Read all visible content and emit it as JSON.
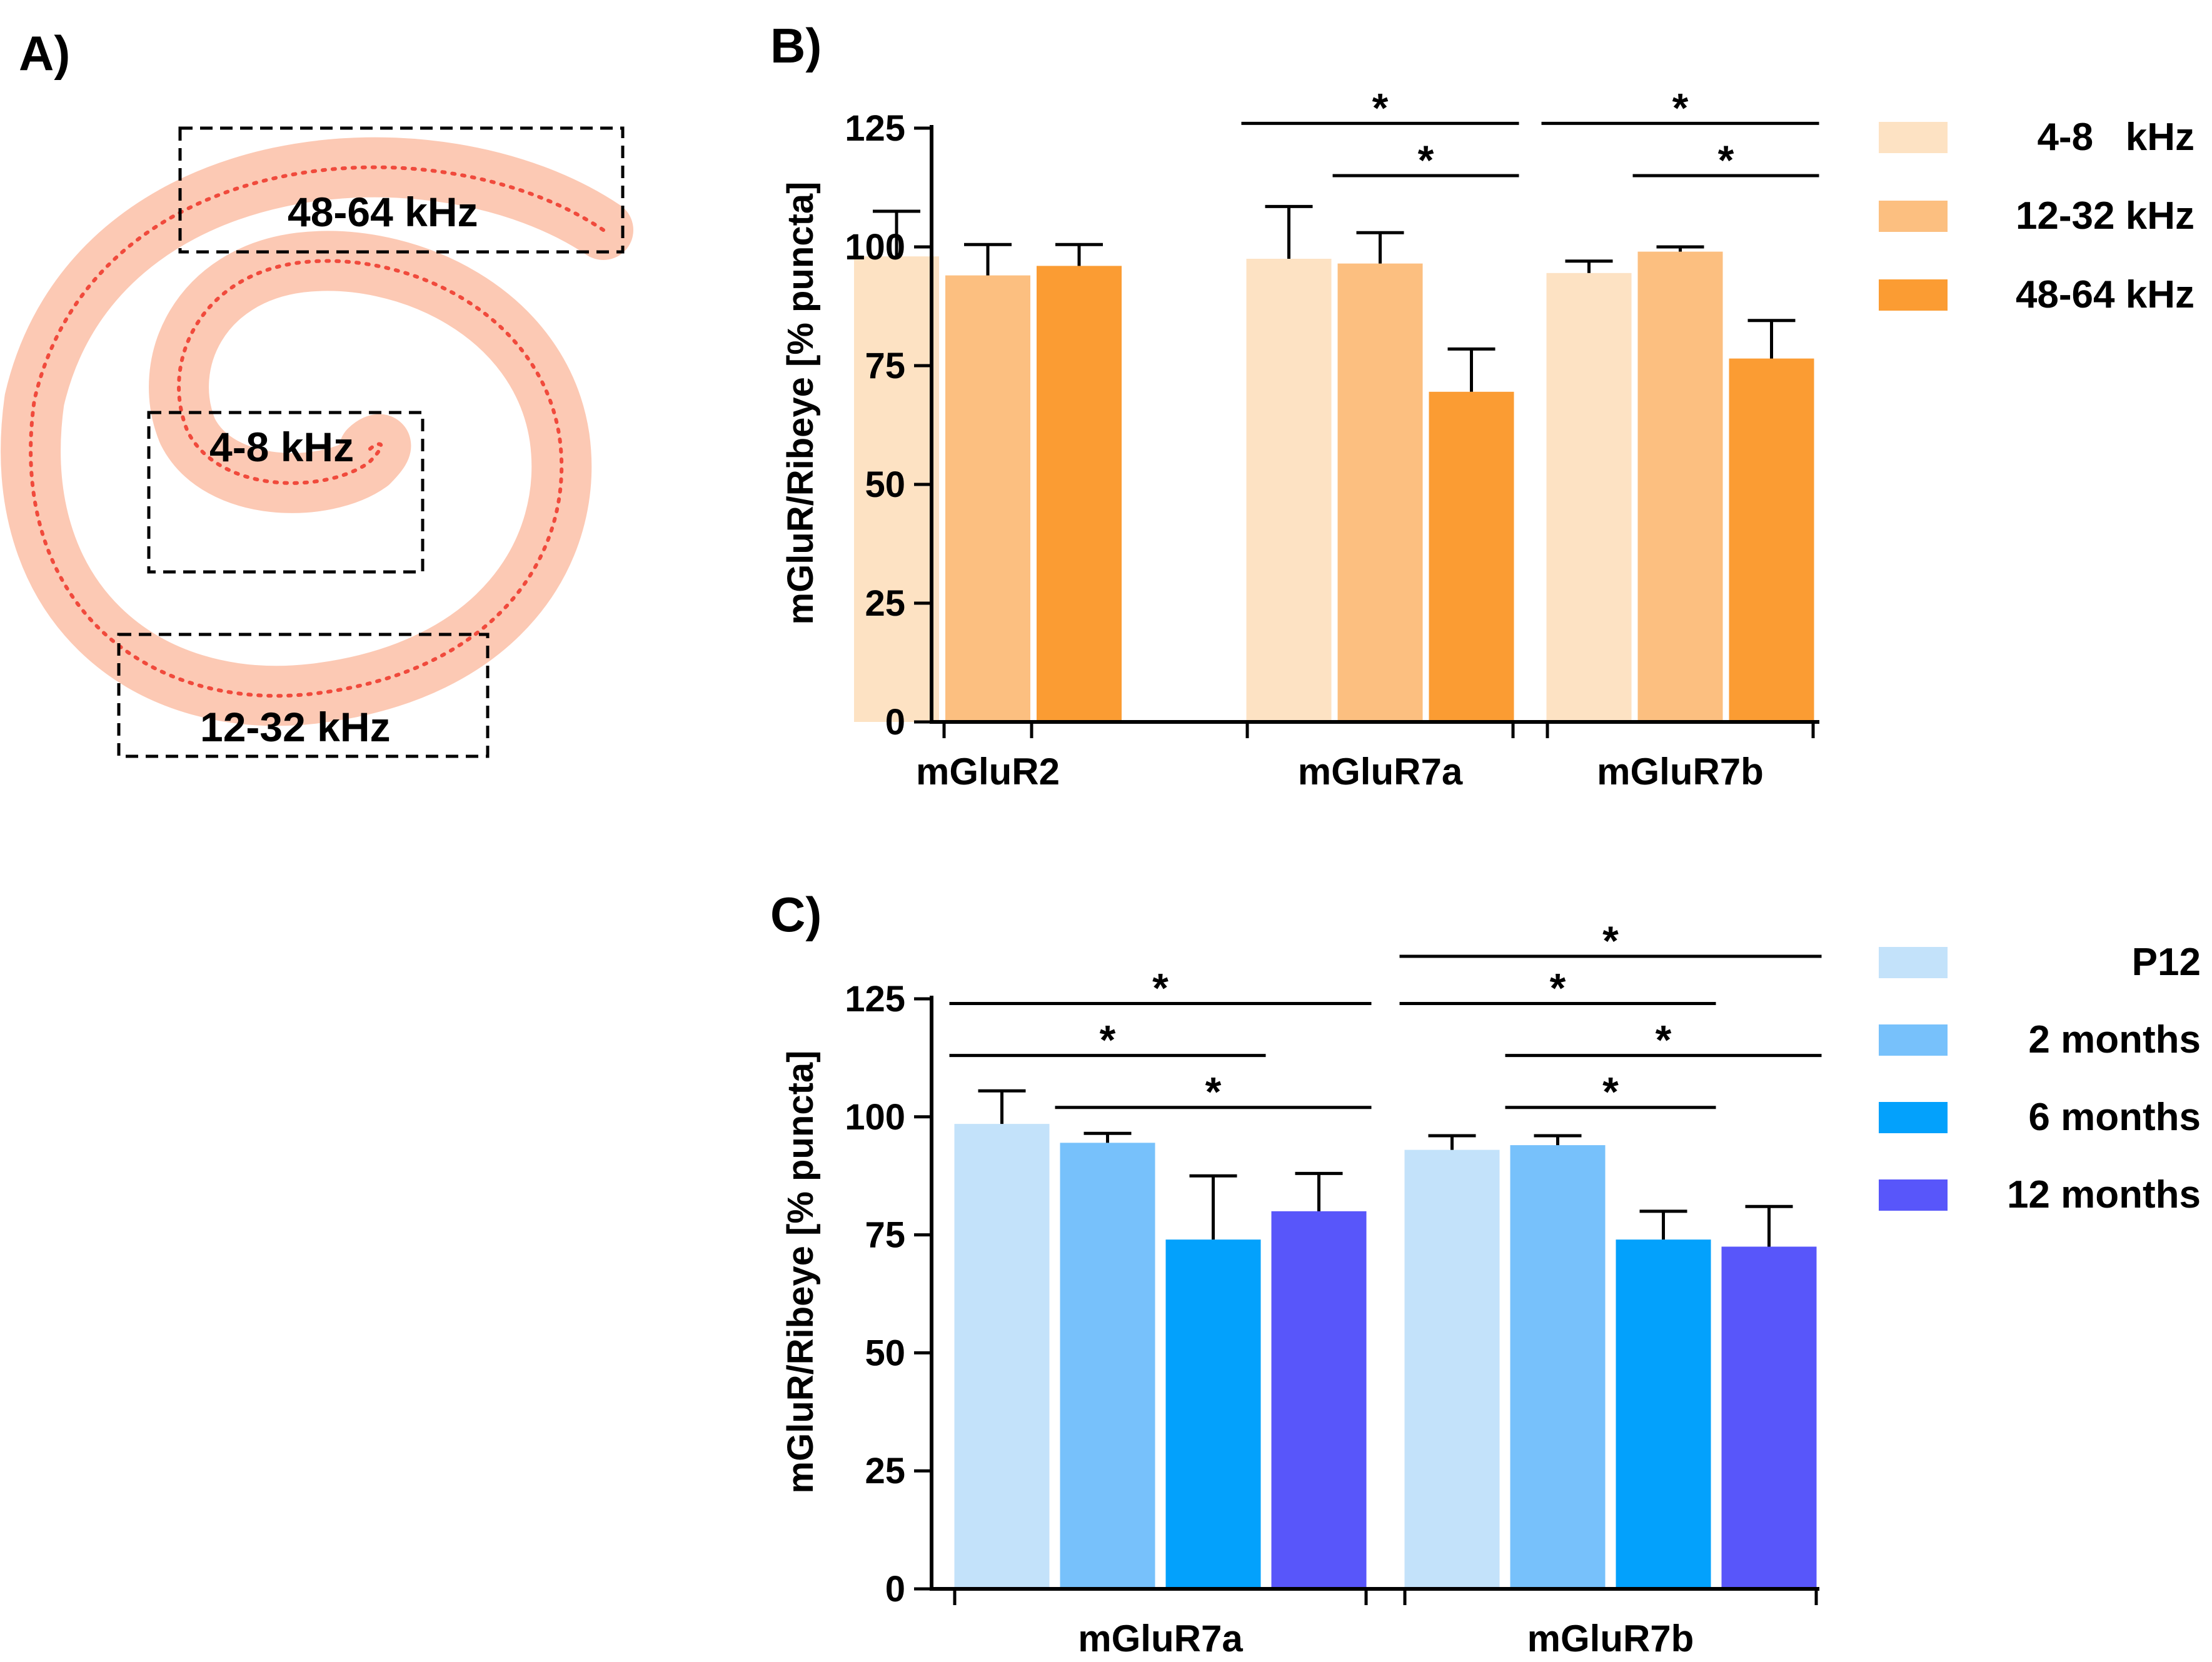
{
  "colors": {
    "freq_4_8": "#fde2c3",
    "freq_12_32": "#fcbf80",
    "freq_48_64": "#fb9c33",
    "age_p12": "#c3e2fa",
    "age_2m": "#77c1fb",
    "age_6m": "#03a1fc",
    "age_12m": "#5856fa",
    "spiral": "#fcc9b4",
    "spiral_dots": "#f04a3c"
  },
  "panel_a": {
    "label": "A)",
    "regions": {
      "high": "48-64 kHz",
      "low": "4-8 kHz",
      "mid": "12-32 kHz"
    }
  },
  "chart_data": [
    {
      "panel": "B)",
      "type": "bar",
      "ylabel": "mGluR/Ribeye [% puncta]",
      "xlabel": "",
      "ylim": [
        0,
        125
      ],
      "yticks": [
        0,
        25,
        50,
        75,
        100,
        125
      ],
      "categories": [
        "mGluR2",
        "mGluR7a",
        "mGluR7b"
      ],
      "series": [
        {
          "name": "4-8   kHz",
          "color": "#fde2c3",
          "values": [
            98.0,
            97.5,
            94.5
          ],
          "errors": [
            9.5,
            11.0,
            2.5
          ]
        },
        {
          "name": "12-32 kHz",
          "color": "#fcbf80",
          "values": [
            94.0,
            96.5,
            99.0
          ],
          "errors": [
            6.5,
            6.5,
            1.0
          ]
        },
        {
          "name": "48-64 kHz",
          "color": "#fb9c33",
          "values": [
            96.0,
            69.5,
            76.5
          ],
          "errors": [
            4.5,
            9.0,
            8.0
          ]
        }
      ],
      "significance": [
        {
          "category": 1,
          "from": 0,
          "to": 2,
          "y": 126,
          "label": "*"
        },
        {
          "category": 1,
          "from": 1,
          "to": 2,
          "y": 115,
          "label": "*"
        },
        {
          "category": 2,
          "from": 0,
          "to": 2,
          "y": 126,
          "label": "*"
        },
        {
          "category": 2,
          "from": 1,
          "to": 2,
          "y": 115,
          "label": "*"
        }
      ],
      "legend_position": "right"
    },
    {
      "panel": "C)",
      "type": "bar",
      "ylabel": "mGluR/Ribeye [% puncta]",
      "xlabel": "",
      "ylim": [
        0,
        125
      ],
      "yticks": [
        0,
        25,
        50,
        75,
        100,
        125
      ],
      "categories": [
        "mGluR7a",
        "mGluR7b"
      ],
      "series": [
        {
          "name": "P12",
          "color": "#c3e2fa",
          "values": [
            98.5,
            93.0
          ],
          "errors": [
            7.0,
            3.0
          ]
        },
        {
          "name": "2 months",
          "color": "#77c1fb",
          "values": [
            94.5,
            94.0
          ],
          "errors": [
            2.0,
            2.0
          ]
        },
        {
          "name": "6 months",
          "color": "#03a1fc",
          "values": [
            74.0,
            74.0
          ],
          "errors": [
            13.5,
            6.0
          ]
        },
        {
          "name": "12 months",
          "color": "#5856fa",
          "values": [
            80.0,
            72.5
          ],
          "errors": [
            8.0,
            8.5
          ]
        }
      ],
      "significance": [
        {
          "category": 0,
          "from": 0,
          "to": 3,
          "y": 124,
          "label": "*"
        },
        {
          "category": 0,
          "from": 0,
          "to": 2,
          "y": 113,
          "label": "*"
        },
        {
          "category": 0,
          "from": 1,
          "to": 3,
          "y": 102,
          "label": "*"
        },
        {
          "category": 1,
          "from": 0,
          "to": 3,
          "y": 134,
          "label": "*"
        },
        {
          "category": 1,
          "from": 0,
          "to": 2,
          "y": 124,
          "label": "*"
        },
        {
          "category": 1,
          "from": 1,
          "to": 3,
          "y": 113,
          "label": "*"
        },
        {
          "category": 1,
          "from": 1,
          "to": 2,
          "y": 102,
          "label": "*"
        }
      ],
      "legend_position": "right"
    }
  ]
}
